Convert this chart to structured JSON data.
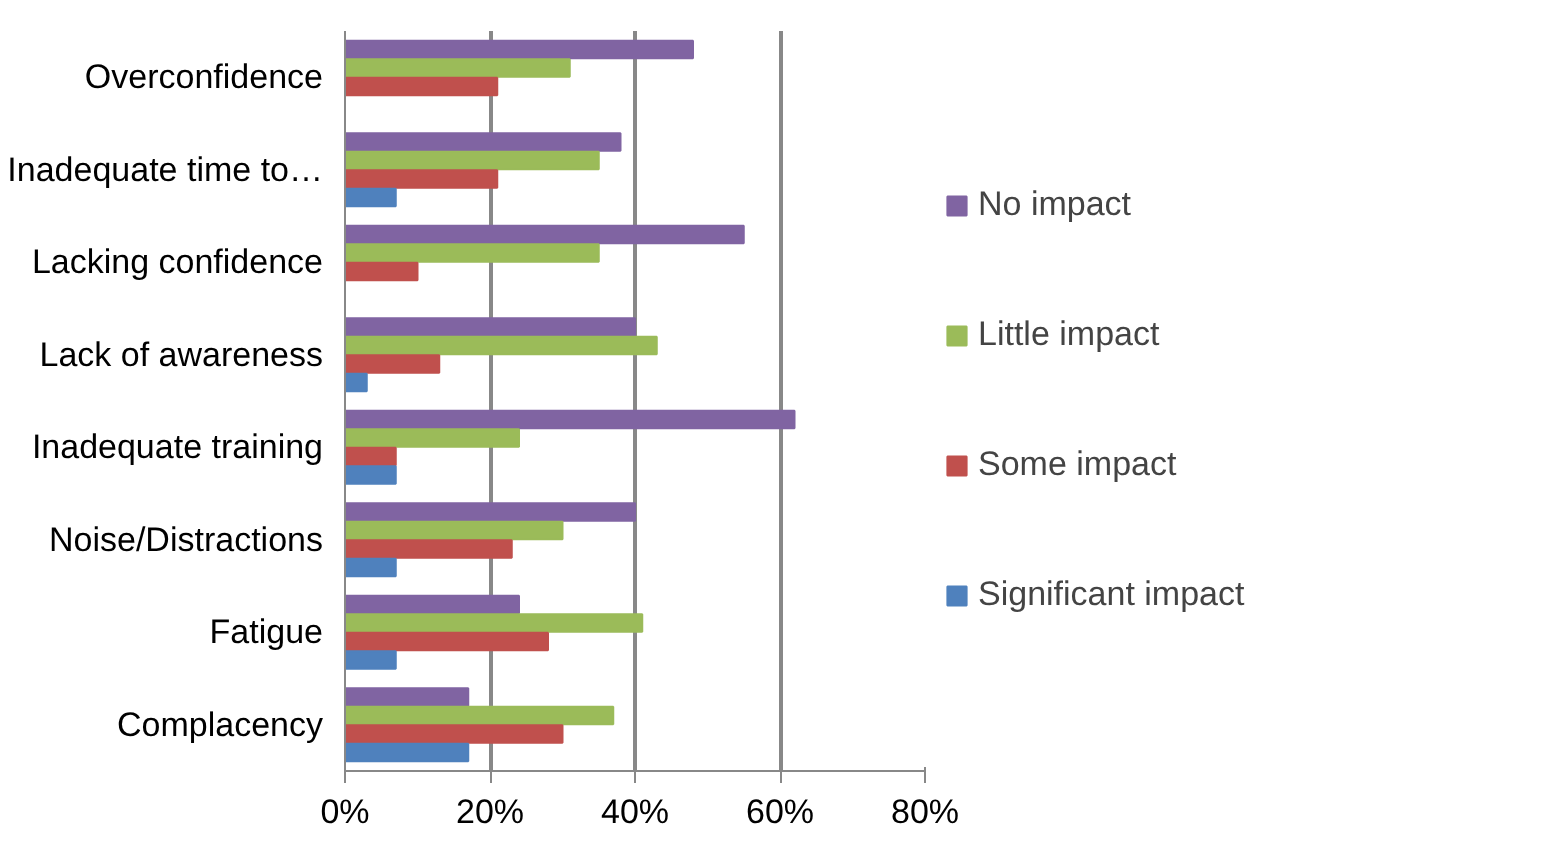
{
  "chart_data": {
    "type": "bar",
    "orientation": "horizontal",
    "categories": [
      "Overconfidence",
      "Inadequate time to…",
      "Lacking confidence",
      "Lack of awareness",
      "Inadequate training",
      "Noise/Distractions",
      "Fatigue",
      "Complacency"
    ],
    "series": [
      {
        "name": "No impact",
        "color": "#8064a2",
        "values": [
          48,
          38,
          55,
          40,
          62,
          40,
          24,
          17
        ]
      },
      {
        "name": "Little impact",
        "color": "#9bbb59",
        "values": [
          31,
          35,
          35,
          43,
          24,
          30,
          41,
          37
        ]
      },
      {
        "name": "Some impact",
        "color": "#c0504d",
        "values": [
          21,
          21,
          10,
          13,
          7,
          23,
          28,
          30
        ]
      },
      {
        "name": "Significant impact",
        "color": "#4f81bd",
        "values": [
          0,
          7,
          0,
          3,
          7,
          7,
          7,
          17
        ]
      }
    ],
    "xlim": [
      0,
      80
    ],
    "xticks": [
      {
        "value": 0,
        "label": "0%"
      },
      {
        "value": 20,
        "label": "20%"
      },
      {
        "value": 40,
        "label": "40%"
      },
      {
        "value": 60,
        "label": "60%"
      },
      {
        "value": 80,
        "label": "80%"
      }
    ],
    "grid": "x",
    "legend": "right"
  }
}
